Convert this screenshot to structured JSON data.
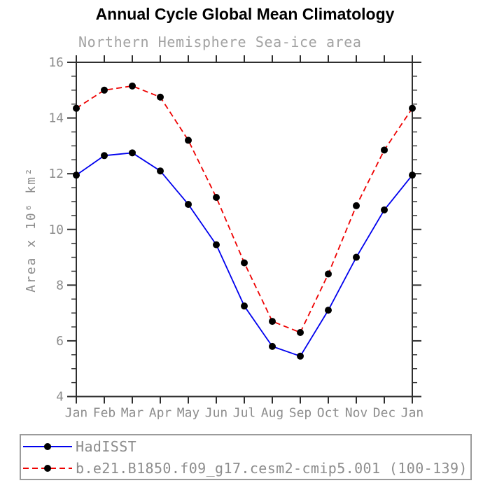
{
  "colors": {
    "background": "#ffffff",
    "axis": "#2f2f2f",
    "tick_label": "#8c8c8c",
    "subtitle_text": "#a2a2a2",
    "legend_border": "#9b9b9b",
    "legend_text": "#8c8c8c",
    "marker": "#000000",
    "hadisst_blue": "#0000ee",
    "model_red": "#ee0000"
  },
  "chart_data": {
    "type": "line",
    "title": "Annual Cycle Global Mean Climatology",
    "subtitle": "Northern Hemisphere Sea-ice area",
    "xlabel": "",
    "ylabel": "Area x 10⁶ km²",
    "x_labels": [
      "Jan",
      "Feb",
      "Mar",
      "Apr",
      "May",
      "Jun",
      "Jul",
      "Aug",
      "Sep",
      "Oct",
      "Nov",
      "Dec",
      "Jan"
    ],
    "ylim": [
      4,
      16
    ],
    "y_major_ticks": [
      4,
      6,
      8,
      10,
      12,
      14,
      16
    ],
    "y_major_tick_labels": [
      "4",
      "6",
      "8",
      "10",
      "12",
      "14",
      "16"
    ],
    "y_minor_step": 0.5,
    "grid": false,
    "legend_position": "bottom-left boxed below plot",
    "series": [
      {
        "name": "HadISST",
        "color": "#0000ee",
        "line_style": "solid",
        "marker": "filled-circle",
        "values": [
          11.95,
          12.65,
          12.75,
          12.1,
          10.9,
          9.45,
          7.25,
          5.8,
          5.45,
          7.1,
          9.0,
          10.7,
          11.95
        ]
      },
      {
        "name": "b.e21.B1850.f09_g17.cesm2-cmip5.001 (100-139)",
        "color": "#ee0000",
        "line_style": "dashed",
        "marker": "filled-circle",
        "values": [
          14.35,
          15.0,
          15.15,
          14.75,
          13.2,
          11.15,
          8.8,
          6.7,
          6.3,
          8.4,
          10.85,
          12.85,
          14.35
        ]
      }
    ]
  }
}
